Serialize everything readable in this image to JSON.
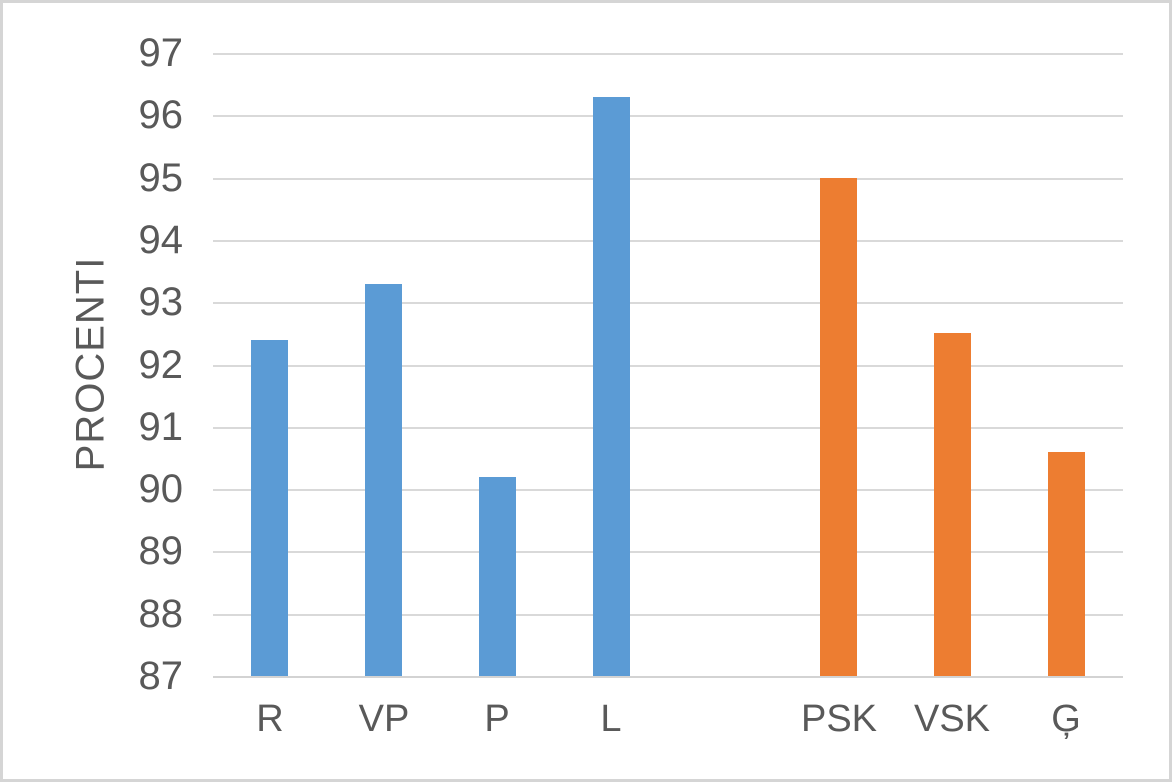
{
  "chart_data": {
    "type": "bar",
    "title": "",
    "xlabel": "",
    "ylabel": "PROCENTI",
    "categories": [
      "R",
      "VP",
      "P",
      "L",
      "",
      "PSK",
      "VSK",
      "Ģ"
    ],
    "values": [
      92.4,
      93.3,
      90.2,
      96.3,
      null,
      95.0,
      92.5,
      90.6
    ],
    "bar_colors": [
      "#5B9BD5",
      "#5B9BD5",
      "#5B9BD5",
      "#5B9BD5",
      null,
      "#ED7D31",
      "#ED7D31",
      "#ED7D31"
    ],
    "yticks": [
      87,
      88,
      89,
      90,
      91,
      92,
      93,
      94,
      95,
      96,
      97
    ],
    "ylim": [
      87,
      97
    ],
    "grid": true,
    "legend_position": "none"
  },
  "colors": {
    "bar_blue": "#5B9BD5",
    "bar_orange": "#ED7D31",
    "text": "#595959",
    "gridline": "#D9D9D9",
    "axis_line": "#D3D3D3",
    "background": "#FFFFFF",
    "frame_border": "#D5D5D5"
  }
}
